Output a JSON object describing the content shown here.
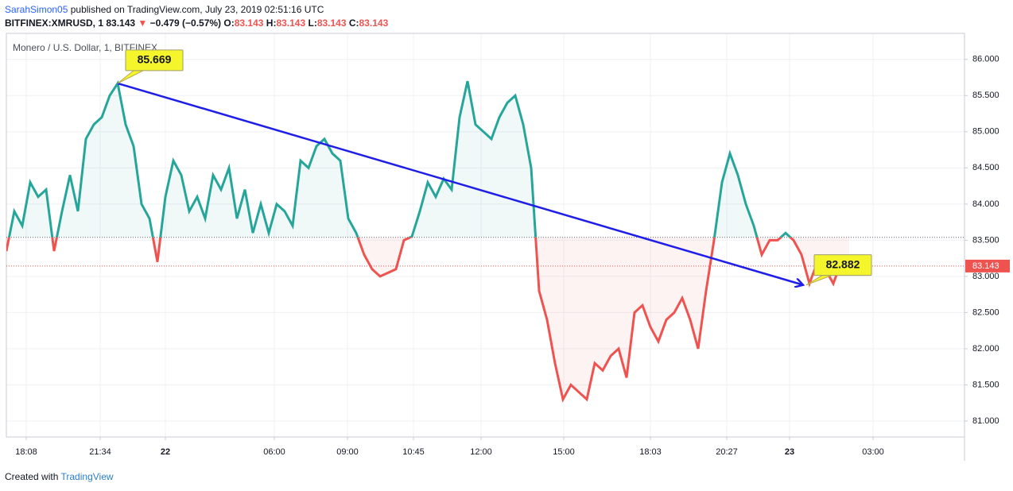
{
  "header": {
    "author": "SarahSimon05",
    "published": "published on TradingView.com, July 23, 2019 02:51:16 UTC",
    "symbol": "BITFINEX:XMRUSD, 1",
    "price": "83.143",
    "arrow": "▼",
    "change": "−0.479 (−0.57%)",
    "ohlc": [
      [
        "O:",
        "83.143"
      ],
      [
        "H:",
        "83.143"
      ],
      [
        "L:",
        "83.143"
      ],
      [
        "C:",
        "83.143"
      ]
    ]
  },
  "footer": {
    "created": "Created with",
    "brand": "TradingView"
  },
  "chart_data": {
    "type": "line",
    "legend": "Monero / U.S. Dollar, 1, BITFINEX",
    "x": [
      0,
      10,
      20,
      30,
      40,
      50,
      60,
      70,
      80,
      90,
      100,
      110,
      120,
      130,
      140,
      150,
      160,
      170,
      180,
      190,
      200,
      210,
      220,
      230,
      240,
      250,
      260,
      270,
      280,
      290,
      300,
      310,
      320,
      330,
      340,
      350,
      360,
      370,
      380,
      390,
      400,
      410,
      420,
      430,
      440,
      450,
      460,
      470,
      480,
      490,
      500,
      510,
      520,
      530,
      540,
      550,
      560,
      570,
      580,
      590,
      600,
      610,
      620,
      630,
      640,
      650,
      660,
      670,
      680,
      690,
      700,
      710,
      720,
      730,
      740,
      750,
      760,
      770,
      780,
      790,
      800,
      810,
      820,
      830,
      840,
      850,
      860,
      870,
      880,
      890,
      900,
      910,
      920,
      930,
      940,
      950,
      960,
      970,
      980,
      990,
      1000,
      1010,
      1020,
      1030,
      1040,
      1050,
      1060
    ],
    "series": [
      {
        "name": "XMRUSD",
        "color": "#26a69a",
        "color_below": "#ef5350",
        "values": [
          83.35,
          83.9,
          83.7,
          84.3,
          84.1,
          84.2,
          83.35,
          83.9,
          84.4,
          83.9,
          84.9,
          85.1,
          85.2,
          85.5,
          85.669,
          85.1,
          84.8,
          84.0,
          83.8,
          83.2,
          84.1,
          84.6,
          84.4,
          83.9,
          84.1,
          83.8,
          84.4,
          84.2,
          84.5,
          83.8,
          84.2,
          83.6,
          84.0,
          83.6,
          84.0,
          83.9,
          83.7,
          84.6,
          84.5,
          84.8,
          84.9,
          84.7,
          84.6,
          83.8,
          83.6,
          83.3,
          83.1,
          83.0,
          83.05,
          83.1,
          83.5,
          83.55,
          83.9,
          84.3,
          84.1,
          84.35,
          84.2,
          85.2,
          85.7,
          85.1,
          85.0,
          84.9,
          85.2,
          85.4,
          85.5,
          85.1,
          84.5,
          82.8,
          82.4,
          81.8,
          81.3,
          81.5,
          81.4,
          81.3,
          81.8,
          81.7,
          81.9,
          82.0,
          81.6,
          82.5,
          82.6,
          82.3,
          82.1,
          82.4,
          82.5,
          82.7,
          82.4,
          82.0,
          82.8,
          83.5,
          84.3,
          84.7,
          84.4,
          84.0,
          83.7,
          83.3,
          83.5,
          83.5,
          83.6,
          83.5,
          83.3,
          82.9,
          83.2,
          83.1,
          82.9,
          83.2,
          83.143
        ]
      }
    ],
    "baseline": 83.54,
    "last_price": {
      "value": 83.143,
      "label": "83.143"
    },
    "xlim": [
      0,
      1205
    ],
    "xticks": [
      {
        "value": 25,
        "label": "18:08"
      },
      {
        "value": 118,
        "label": "21:34"
      },
      {
        "value": 200,
        "label": "22"
      },
      {
        "value": 337,
        "label": "06:00"
      },
      {
        "value": 429,
        "label": "09:00"
      },
      {
        "value": 512,
        "label": "10:45"
      },
      {
        "value": 597,
        "label": "12:00"
      },
      {
        "value": 701,
        "label": "15:00"
      },
      {
        "value": 810,
        "label": "18:03"
      },
      {
        "value": 906,
        "label": "20:27"
      },
      {
        "value": 985,
        "label": "23"
      },
      {
        "value": 1090,
        "label": "03:00"
      }
    ],
    "ylim": [
      80.78,
      86.36
    ],
    "yticks": [
      {
        "value": 81,
        "label": "81.000"
      },
      {
        "value": 81.5,
        "label": "81.500"
      },
      {
        "value": 82,
        "label": "82.000"
      },
      {
        "value": 82.5,
        "label": "82.500"
      },
      {
        "value": 83,
        "label": "83.000"
      },
      {
        "value": 83.5,
        "label": "83.500"
      },
      {
        "value": 84,
        "label": "84.000"
      },
      {
        "value": 84.5,
        "label": "84.500"
      },
      {
        "value": 85,
        "label": "85.000"
      },
      {
        "value": 85.5,
        "label": "85.500"
      },
      {
        "value": 86,
        "label": "86.000"
      }
    ],
    "grid": true,
    "trend": {
      "x": [
        140,
        1002
      ],
      "y": [
        85.669,
        82.882
      ],
      "color": "#1e1ee8"
    },
    "callouts": [
      {
        "x": 140,
        "value": 85.669,
        "label": "85.669"
      },
      {
        "x": 1006,
        "value": 82.882,
        "label": "82.882"
      }
    ]
  }
}
